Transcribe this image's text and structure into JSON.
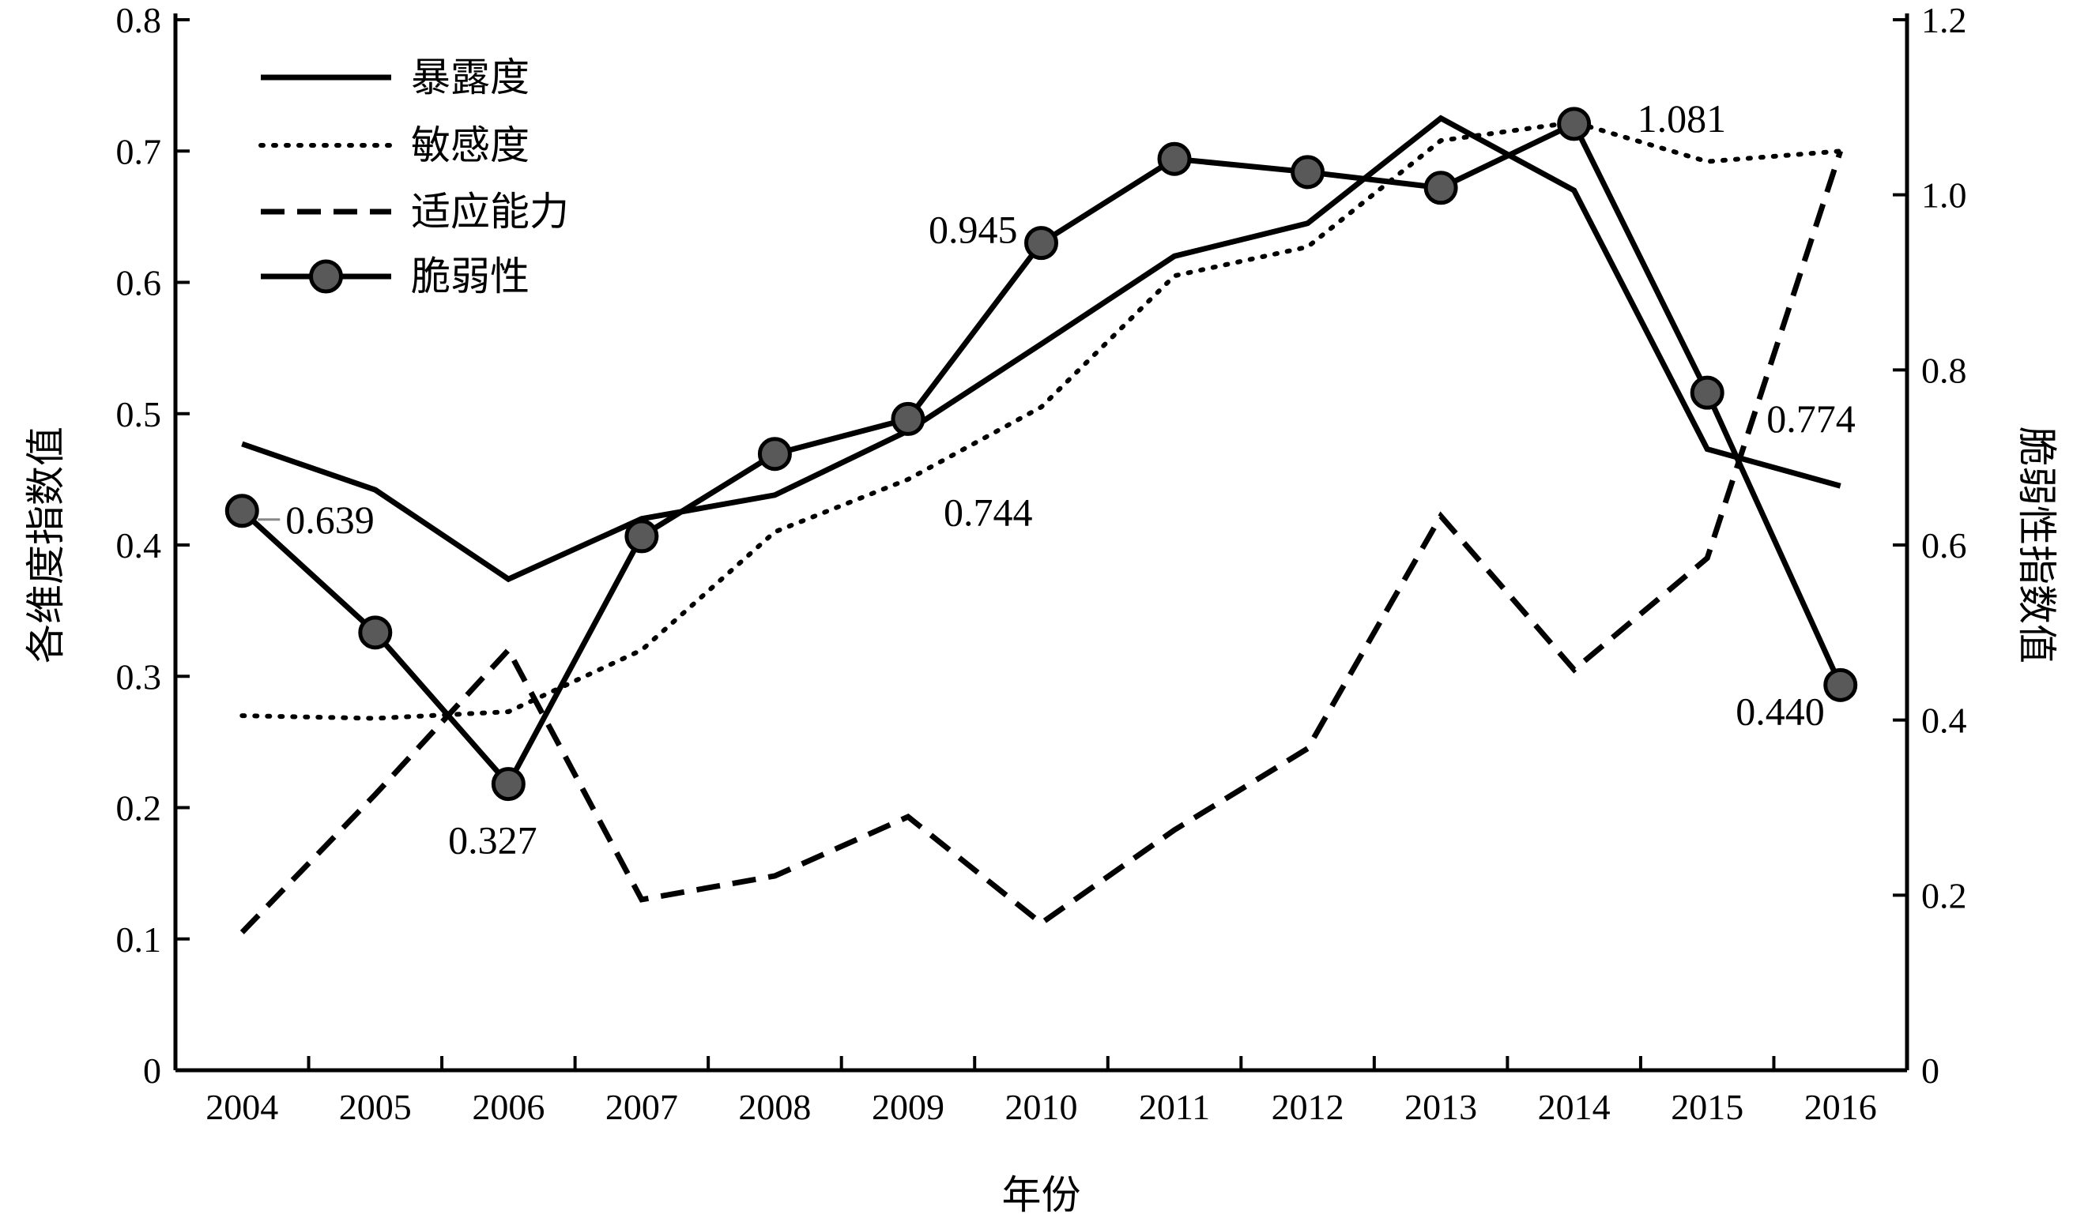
{
  "chart_data": {
    "type": "line",
    "title": "",
    "xlabel": "年份",
    "ylabel_left": "各维度指数值",
    "ylabel_right": "脆弱性指数值",
    "categories": [
      "2004",
      "2005",
      "2006",
      "2007",
      "2008",
      "2009",
      "2010",
      "2011",
      "2012",
      "2013",
      "2014",
      "2015",
      "2016"
    ],
    "y_left": {
      "min": 0,
      "max": 0.8,
      "ticks": [
        "0",
        "0.1",
        "0.2",
        "0.3",
        "0.4",
        "0.5",
        "0.6",
        "0.7",
        "0.8"
      ]
    },
    "y_right": {
      "min": 0,
      "max": 1.2,
      "ticks": [
        "0",
        "0.2",
        "0.4",
        "0.6",
        "0.8",
        "1.0",
        "1.2"
      ]
    },
    "grid": false,
    "legend_position": "top-left",
    "series": [
      {
        "name": "暴露度",
        "axis": "left",
        "style": "solid",
        "values": [
          0.477,
          0.442,
          0.374,
          0.42,
          0.438,
          0.487,
          0.553,
          0.62,
          0.645,
          0.725,
          0.67,
          0.473,
          0.445
        ]
      },
      {
        "name": "敏感度",
        "axis": "left",
        "style": "dotted",
        "values": [
          0.27,
          0.268,
          0.273,
          0.32,
          0.41,
          0.45,
          0.505,
          0.605,
          0.627,
          0.708,
          0.722,
          0.692,
          0.7
        ]
      },
      {
        "name": "适应能力",
        "axis": "left",
        "style": "dashed",
        "values": [
          0.105,
          0.21,
          0.32,
          0.13,
          0.148,
          0.193,
          0.112,
          0.183,
          0.245,
          0.422,
          0.305,
          0.39,
          0.7
        ]
      },
      {
        "name": "脆弱性",
        "axis": "right",
        "style": "solid-marker",
        "values": [
          0.639,
          0.5,
          0.327,
          0.61,
          0.704,
          0.744,
          0.945,
          1.041,
          1.026,
          1.008,
          1.081,
          0.774,
          0.44
        ]
      }
    ],
    "annotations": [
      {
        "text": "0.639",
        "series": "脆弱性",
        "index": 0
      },
      {
        "text": "0.327",
        "series": "脆弱性",
        "index": 2
      },
      {
        "text": "0.744",
        "series": "脆弱性",
        "index": 5
      },
      {
        "text": "0.945",
        "series": "脆弱性",
        "index": 6
      },
      {
        "text": "1.081",
        "series": "脆弱性",
        "index": 10
      },
      {
        "text": "0.774",
        "series": "脆弱性",
        "index": 11
      },
      {
        "text": "0.440",
        "series": "脆弱性",
        "index": 12
      }
    ],
    "colors": {
      "line": "#000000",
      "marker_fill": "#595959",
      "background": "#ffffff"
    }
  }
}
